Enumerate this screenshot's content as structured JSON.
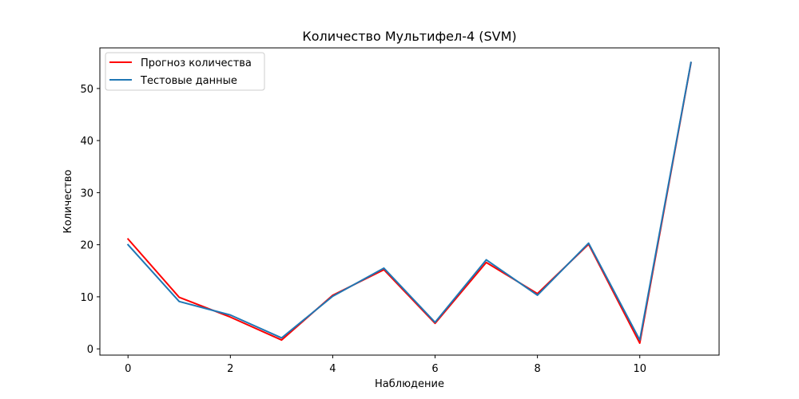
{
  "chart_data": {
    "type": "line",
    "title": "Количество Мультифел-4  (SVM)",
    "xlabel": "Наблюдение",
    "ylabel": "Количество",
    "x": [
      0,
      1,
      2,
      3,
      4,
      5,
      6,
      7,
      8,
      9,
      10,
      11
    ],
    "xlim": [
      -0.55,
      11.55
    ],
    "ylim": [
      -1.2,
      57.8
    ],
    "xticks": [
      0,
      2,
      4,
      6,
      8,
      10
    ],
    "yticks": [
      0,
      10,
      20,
      30,
      40,
      50
    ],
    "grid": false,
    "legend_position": "upper-left",
    "series": [
      {
        "name": "Прогноз количества",
        "color": "#ff0000",
        "values": [
          21.1,
          9.9,
          6.1,
          1.7,
          10.3,
          15.2,
          4.9,
          16.6,
          10.6,
          20.1,
          1.1,
          54.9
        ]
      },
      {
        "name": "Тестовые данные",
        "color": "#1f77b4",
        "values": [
          20.0,
          9.1,
          6.5,
          2.1,
          10.1,
          15.5,
          5.1,
          17.1,
          10.3,
          20.3,
          1.7,
          55.0
        ]
      }
    ]
  }
}
